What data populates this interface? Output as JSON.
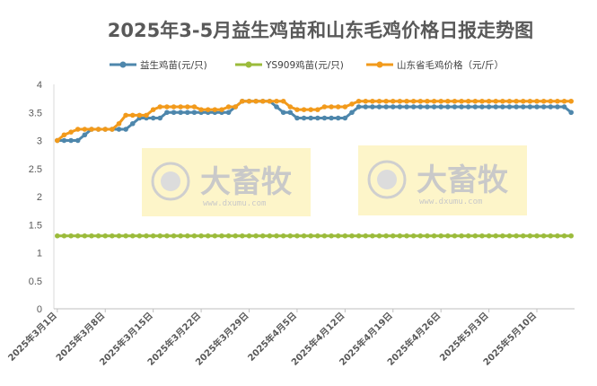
{
  "chart_data": {
    "type": "line",
    "title": "2025年3-5月益生鸡苗和山东毛鸡价格日报走势图",
    "xlabel": "",
    "ylabel": "",
    "ylim": [
      0,
      4
    ],
    "yticks": [
      "0",
      "0.5",
      "1",
      "1.5",
      "2",
      "2.5",
      "3",
      "3.5",
      "4"
    ],
    "grid": false,
    "legend_position": "top",
    "x_tick_labels": [
      "2025年3月1日",
      "2025年3月8日",
      "2025年3月15日",
      "2025年3月22日",
      "2025年3月29日",
      "2025年4月5日",
      "2025年4月12日",
      "2025年4月19日",
      "2025年4月26日",
      "2025年5月3日",
      "2025年5月10日"
    ],
    "x": [
      "2025-03-01",
      "2025-03-02",
      "2025-03-03",
      "2025-03-04",
      "2025-03-05",
      "2025-03-06",
      "2025-03-07",
      "2025-03-08",
      "2025-03-09",
      "2025-03-10",
      "2025-03-11",
      "2025-03-12",
      "2025-03-13",
      "2025-03-14",
      "2025-03-15",
      "2025-03-16",
      "2025-03-17",
      "2025-03-18",
      "2025-03-19",
      "2025-03-20",
      "2025-03-21",
      "2025-03-22",
      "2025-03-23",
      "2025-03-24",
      "2025-03-25",
      "2025-03-26",
      "2025-03-27",
      "2025-03-28",
      "2025-03-29",
      "2025-03-30",
      "2025-03-31",
      "2025-04-01",
      "2025-04-02",
      "2025-04-03",
      "2025-04-04",
      "2025-04-05",
      "2025-04-06",
      "2025-04-07",
      "2025-04-08",
      "2025-04-09",
      "2025-04-10",
      "2025-04-11",
      "2025-04-12",
      "2025-04-13",
      "2025-04-14",
      "2025-04-15",
      "2025-04-16",
      "2025-04-17",
      "2025-04-18",
      "2025-04-19",
      "2025-04-20",
      "2025-04-21",
      "2025-04-22",
      "2025-04-23",
      "2025-04-24",
      "2025-04-25",
      "2025-04-26",
      "2025-04-27",
      "2025-04-28",
      "2025-04-29",
      "2025-04-30",
      "2025-05-01",
      "2025-05-02",
      "2025-05-03",
      "2025-05-04",
      "2025-05-05",
      "2025-05-06",
      "2025-05-07",
      "2025-05-08",
      "2025-05-09",
      "2025-05-10",
      "2025-05-11",
      "2025-05-12",
      "2025-05-13",
      "2025-05-14",
      "2025-05-15"
    ],
    "series": [
      {
        "name": "益生鸡苗(元/只)",
        "color": "#4e87ac",
        "values": [
          3.0,
          3.0,
          3.0,
          3.0,
          3.1,
          3.2,
          3.2,
          3.2,
          3.2,
          3.2,
          3.2,
          3.3,
          3.4,
          3.4,
          3.4,
          3.4,
          3.5,
          3.5,
          3.5,
          3.5,
          3.5,
          3.5,
          3.5,
          3.5,
          3.5,
          3.5,
          3.6,
          3.7,
          3.7,
          3.7,
          3.7,
          3.7,
          3.6,
          3.5,
          3.5,
          3.4,
          3.4,
          3.4,
          3.4,
          3.4,
          3.4,
          3.4,
          3.4,
          3.5,
          3.6,
          3.6,
          3.6,
          3.6,
          3.6,
          3.6,
          3.6,
          3.6,
          3.6,
          3.6,
          3.6,
          3.6,
          3.6,
          3.6,
          3.6,
          3.6,
          3.6,
          3.6,
          3.6,
          3.6,
          3.6,
          3.6,
          3.6,
          3.6,
          3.6,
          3.6,
          3.6,
          3.6,
          3.6,
          3.6,
          3.6,
          3.5
        ]
      },
      {
        "name": "YS909鸡苗(元/只)",
        "color": "#9bbb3b",
        "values": [
          1.3,
          1.3,
          1.3,
          1.3,
          1.3,
          1.3,
          1.3,
          1.3,
          1.3,
          1.3,
          1.3,
          1.3,
          1.3,
          1.3,
          1.3,
          1.3,
          1.3,
          1.3,
          1.3,
          1.3,
          1.3,
          1.3,
          1.3,
          1.3,
          1.3,
          1.3,
          1.3,
          1.3,
          1.3,
          1.3,
          1.3,
          1.3,
          1.3,
          1.3,
          1.3,
          1.3,
          1.3,
          1.3,
          1.3,
          1.3,
          1.3,
          1.3,
          1.3,
          1.3,
          1.3,
          1.3,
          1.3,
          1.3,
          1.3,
          1.3,
          1.3,
          1.3,
          1.3,
          1.3,
          1.3,
          1.3,
          1.3,
          1.3,
          1.3,
          1.3,
          1.3,
          1.3,
          1.3,
          1.3,
          1.3,
          1.3,
          1.3,
          1.3,
          1.3,
          1.3,
          1.3,
          1.3,
          1.3,
          1.3,
          1.3,
          1.3
        ]
      },
      {
        "name": "山东省毛鸡价格（元/斤）",
        "color": "#f29a1b",
        "values": [
          3.0,
          3.1,
          3.15,
          3.2,
          3.2,
          3.2,
          3.2,
          3.2,
          3.2,
          3.3,
          3.45,
          3.45,
          3.45,
          3.45,
          3.55,
          3.6,
          3.6,
          3.6,
          3.6,
          3.6,
          3.6,
          3.55,
          3.55,
          3.55,
          3.55,
          3.6,
          3.6,
          3.7,
          3.7,
          3.7,
          3.7,
          3.7,
          3.7,
          3.7,
          3.6,
          3.55,
          3.55,
          3.55,
          3.55,
          3.6,
          3.6,
          3.6,
          3.6,
          3.65,
          3.7,
          3.7,
          3.7,
          3.7,
          3.7,
          3.7,
          3.7,
          3.7,
          3.7,
          3.7,
          3.7,
          3.7,
          3.7,
          3.7,
          3.7,
          3.7,
          3.7,
          3.7,
          3.7,
          3.7,
          3.7,
          3.7,
          3.7,
          3.7,
          3.7,
          3.7,
          3.7,
          3.7,
          3.7,
          3.7,
          3.7,
          3.7
        ]
      }
    ]
  },
  "watermark": {
    "brand": "大畜牧",
    "site": "www.dxumu.com"
  }
}
